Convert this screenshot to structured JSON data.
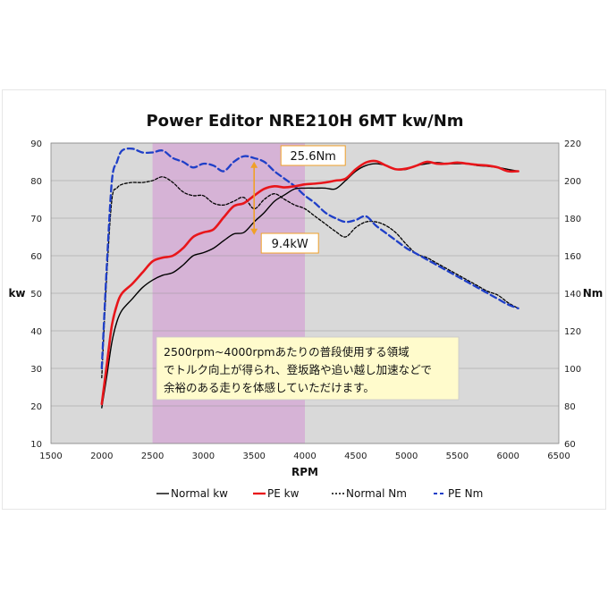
{
  "chart_data": {
    "type": "line",
    "title": "Power Editor NRE210H 6MT kw/Nm",
    "xlabel": "RPM",
    "ylabel_left": "kw",
    "ylabel_right": "Nm",
    "xlim": [
      1500,
      6500
    ],
    "ylim_left": [
      10,
      90
    ],
    "ylim_right": [
      60,
      220
    ],
    "x_ticks": [
      1500,
      2000,
      2500,
      3000,
      3500,
      4000,
      4500,
      5000,
      5500,
      6000,
      6500
    ],
    "y_ticks_left": [
      10,
      20,
      30,
      40,
      50,
      60,
      70,
      80,
      90
    ],
    "y_ticks_right": [
      60,
      80,
      100,
      120,
      140,
      160,
      180,
      200,
      220
    ],
    "grid": true,
    "legend_position": "bottom",
    "highlight_band": {
      "x": [
        2500,
        4000
      ],
      "color": "#d6b3d6"
    },
    "plot_background": "#d9d9d9",
    "series": [
      {
        "name": "Normal kw",
        "axis": "left",
        "color": "#000000",
        "style": "solid",
        "x": [
          2000,
          2050,
          2100,
          2150,
          2200,
          2300,
          2400,
          2500,
          2600,
          2700,
          2800,
          2900,
          3000,
          3100,
          3200,
          3300,
          3400,
          3500,
          3600,
          3700,
          3800,
          3900,
          4000,
          4100,
          4200,
          4300,
          4400,
          4500,
          4600,
          4700,
          4800,
          4900,
          5000,
          5100,
          5200,
          5300,
          5400,
          5500,
          5600,
          5700,
          5800,
          5900,
          6000,
          6100
        ],
        "y": [
          19.5,
          28,
          37,
          42.5,
          45.5,
          48.5,
          51.5,
          53.5,
          54.8,
          55.5,
          57.5,
          60,
          60.8,
          62,
          64,
          65.8,
          66.2,
          69,
          71.5,
          74.5,
          76.2,
          77.8,
          78,
          78,
          78,
          77.8,
          80,
          82.5,
          84,
          84.5,
          84,
          83,
          83,
          84,
          84.5,
          84.8,
          84.5,
          84.5,
          84.5,
          84,
          83.8,
          83.5,
          83,
          82.5
        ]
      },
      {
        "name": "PE kw",
        "axis": "left",
        "color": "#e8161b",
        "style": "solid",
        "x": [
          2000,
          2050,
          2100,
          2150,
          2200,
          2300,
          2400,
          2500,
          2600,
          2700,
          2800,
          2900,
          3000,
          3100,
          3200,
          3300,
          3400,
          3500,
          3600,
          3700,
          3800,
          3900,
          4000,
          4100,
          4200,
          4300,
          4400,
          4500,
          4600,
          4700,
          4800,
          4900,
          5000,
          5100,
          5200,
          5300,
          5400,
          5500,
          5600,
          5700,
          5800,
          5900,
          6000,
          6100
        ],
        "y": [
          20.5,
          31,
          41.5,
          47,
          50,
          52.5,
          55.5,
          58.5,
          59.5,
          60,
          62,
          65,
          66.2,
          67,
          70.2,
          73.2,
          74,
          76,
          77.8,
          78.5,
          78.2,
          78.5,
          79,
          79.2,
          79.5,
          80,
          80.5,
          83,
          84.8,
          85.2,
          84,
          83,
          83.2,
          84,
          85,
          84.5,
          84.5,
          84.8,
          84.5,
          84.2,
          84,
          83.5,
          82.5,
          82.5
        ]
      },
      {
        "name": "Normal Nm",
        "axis": "right",
        "color": "#000000",
        "style": "dashed",
        "x": [
          2000,
          2050,
          2100,
          2150,
          2200,
          2300,
          2400,
          2500,
          2600,
          2700,
          2800,
          2900,
          3000,
          3100,
          3200,
          3300,
          3400,
          3500,
          3600,
          3700,
          3800,
          3900,
          4000,
          4100,
          4200,
          4300,
          4400,
          4500,
          4600,
          4700,
          4800,
          4900,
          5000,
          5100,
          5200,
          5300,
          5400,
          5500,
          5600,
          5700,
          5800,
          5900,
          6000,
          6100
        ],
        "y": [
          95,
          150,
          190,
          196,
          198,
          199,
          199,
          200,
          202,
          199,
          194,
          192,
          192,
          188,
          187,
          189,
          191,
          185,
          190,
          193,
          190,
          187,
          185,
          181,
          177,
          173,
          170,
          175,
          178,
          178,
          176,
          172,
          166,
          161,
          159,
          156,
          153,
          150,
          147,
          144,
          141,
          139,
          135,
          132
        ]
      },
      {
        "name": "PE Nm",
        "axis": "right",
        "color": "#1f3fc8",
        "style": "dashed",
        "x": [
          2000,
          2050,
          2100,
          2150,
          2200,
          2300,
          2400,
          2500,
          2600,
          2700,
          2800,
          2900,
          3000,
          3100,
          3200,
          3300,
          3400,
          3500,
          3600,
          3700,
          3800,
          3900,
          4000,
          4100,
          4200,
          4300,
          4400,
          4500,
          4600,
          4700,
          4800,
          4900,
          5000,
          5100,
          5200,
          5300,
          5400,
          5500,
          5600,
          5700,
          5800,
          5900,
          6000,
          6100
        ],
        "y": [
          100,
          155,
          200,
          210,
          216,
          217,
          215,
          215,
          216,
          212,
          210,
          207,
          209,
          208,
          205,
          210,
          213,
          212,
          210,
          205,
          201,
          197,
          192,
          188,
          183,
          180,
          178,
          179,
          181,
          176,
          172,
          168,
          164,
          161,
          158,
          155,
          152,
          149,
          146,
          143,
          140,
          137,
          134,
          132
        ]
      }
    ],
    "annotations": [
      {
        "text": "25.6Nm",
        "x": 3500,
        "y_right": 212
      },
      {
        "text": "9.4kW",
        "x": 3500,
        "y_left": 66
      }
    ],
    "note": {
      "lines": [
        "2500rpm~4000rpmあたりの普段使用する領域",
        "でトルク向上が得られ、登坂路や追い越し加速などで",
        "余裕のある走りを体感していただけます。"
      ],
      "background": "#fffbcc"
    },
    "callout_arrow_color": "#f0a028"
  }
}
